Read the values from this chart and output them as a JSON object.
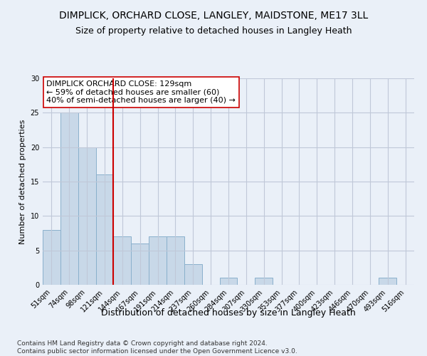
{
  "title": "DIMPLICK, ORCHARD CLOSE, LANGLEY, MAIDSTONE, ME17 3LL",
  "subtitle": "Size of property relative to detached houses in Langley Heath",
  "xlabel": "Distribution of detached houses by size in Langley Heath",
  "ylabel": "Number of detached properties",
  "categories": [
    "51sqm",
    "74sqm",
    "98sqm",
    "121sqm",
    "144sqm",
    "167sqm",
    "191sqm",
    "214sqm",
    "237sqm",
    "260sqm",
    "284sqm",
    "307sqm",
    "330sqm",
    "353sqm",
    "377sqm",
    "400sqm",
    "423sqm",
    "446sqm",
    "470sqm",
    "493sqm",
    "516sqm"
  ],
  "values": [
    8,
    25,
    20,
    16,
    7,
    6,
    7,
    7,
    3,
    0,
    1,
    0,
    1,
    0,
    0,
    0,
    0,
    0,
    0,
    1,
    0
  ],
  "bar_color": "#c8d8e8",
  "bar_edge_color": "#8ab0cc",
  "vline_x": 3.5,
  "vline_color": "#cc0000",
  "annotation_text": "DIMPLICK ORCHARD CLOSE: 129sqm\n← 59% of detached houses are smaller (60)\n40% of semi-detached houses are larger (40) →",
  "annotation_box_color": "#ffffff",
  "annotation_box_edge": "#cc0000",
  "ylim": [
    0,
    30
  ],
  "yticks": [
    0,
    5,
    10,
    15,
    20,
    25,
    30
  ],
  "grid_color": "#c0c8d8",
  "background_color": "#eaf0f8",
  "footnote": "Contains HM Land Registry data © Crown copyright and database right 2024.\nContains public sector information licensed under the Open Government Licence v3.0.",
  "title_fontsize": 10,
  "subtitle_fontsize": 9,
  "xlabel_fontsize": 9,
  "ylabel_fontsize": 8,
  "tick_fontsize": 7,
  "annotation_fontsize": 8,
  "footnote_fontsize": 6.5
}
